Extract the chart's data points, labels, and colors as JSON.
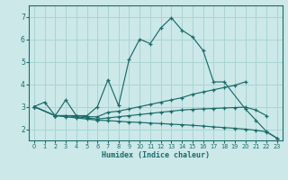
{
  "xlabel": "Humidex (Indice chaleur)",
  "xlim": [
    -0.5,
    23.5
  ],
  "ylim": [
    1.5,
    7.5
  ],
  "xticks": [
    0,
    1,
    2,
    3,
    4,
    5,
    6,
    7,
    8,
    9,
    10,
    11,
    12,
    13,
    14,
    15,
    16,
    17,
    18,
    19,
    20,
    21,
    22,
    23
  ],
  "yticks": [
    2,
    3,
    4,
    5,
    6,
    7
  ],
  "bg_color": "#cce8e8",
  "grid_color": "#aad4d4",
  "line_color": "#1c6b6b",
  "lines": [
    {
      "x": [
        0,
        1,
        2,
        3,
        4,
        5,
        6,
        7,
        8,
        9,
        10,
        11,
        12,
        13,
        14,
        15,
        16,
        17,
        18,
        20,
        21,
        22,
        23
      ],
      "y": [
        3.0,
        3.2,
        2.6,
        3.3,
        2.6,
        2.6,
        3.0,
        4.2,
        3.05,
        5.1,
        6.0,
        5.8,
        6.5,
        6.95,
        6.4,
        6.1,
        5.5,
        4.1,
        4.1,
        2.9,
        2.4,
        1.9,
        1.6
      ]
    },
    {
      "x": [
        0,
        2,
        3,
        4,
        5,
        6,
        7,
        8,
        9,
        10,
        11,
        12,
        13,
        14,
        15,
        16,
        17,
        18,
        19,
        20
      ],
      "y": [
        3.0,
        2.6,
        2.6,
        2.6,
        2.55,
        2.55,
        2.75,
        2.8,
        2.9,
        3.0,
        3.1,
        3.2,
        3.3,
        3.4,
        3.55,
        3.65,
        3.75,
        3.85,
        3.95,
        4.1
      ]
    },
    {
      "x": [
        0,
        2,
        3,
        4,
        5,
        6,
        7,
        8,
        9,
        10,
        11,
        12,
        13,
        14,
        15,
        16,
        17,
        18,
        19,
        20,
        21,
        22
      ],
      "y": [
        3.0,
        2.6,
        2.6,
        2.55,
        2.5,
        2.45,
        2.5,
        2.55,
        2.6,
        2.65,
        2.7,
        2.75,
        2.8,
        2.85,
        2.88,
        2.9,
        2.92,
        2.94,
        2.96,
        2.98,
        2.85,
        2.6
      ]
    },
    {
      "x": [
        0,
        2,
        3,
        4,
        5,
        6,
        7,
        8,
        9,
        10,
        11,
        12,
        13,
        14,
        15,
        16,
        17,
        18,
        19,
        20,
        21,
        22,
        23
      ],
      "y": [
        3.0,
        2.6,
        2.55,
        2.5,
        2.45,
        2.4,
        2.38,
        2.35,
        2.32,
        2.3,
        2.27,
        2.25,
        2.22,
        2.2,
        2.17,
        2.14,
        2.1,
        2.07,
        2.04,
        2.0,
        1.95,
        1.88,
        1.6
      ]
    }
  ]
}
